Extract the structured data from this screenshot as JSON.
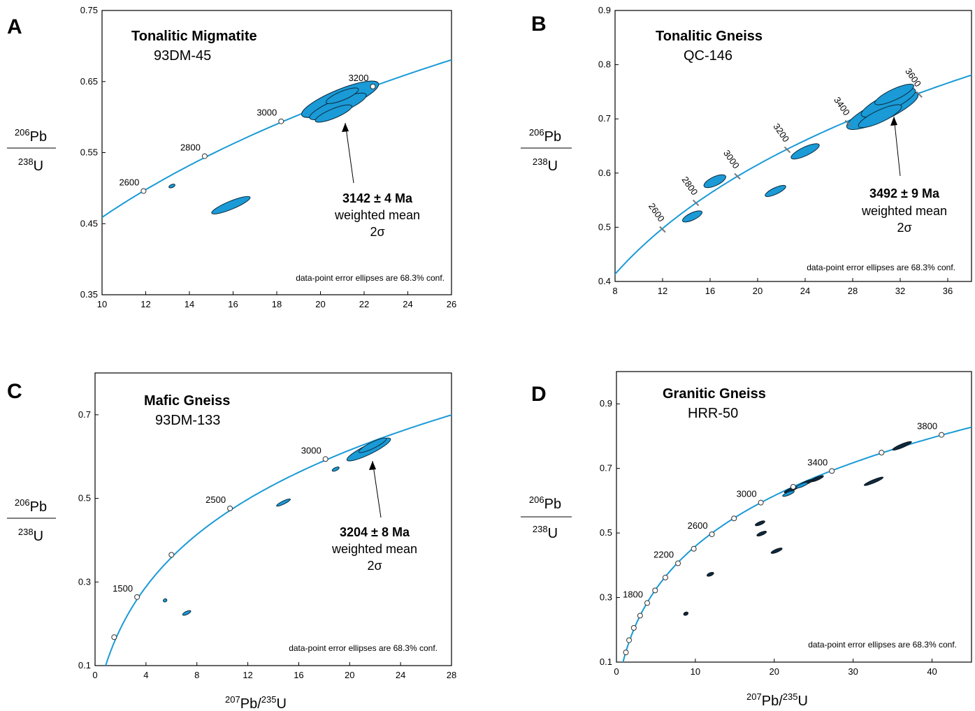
{
  "figure_note": "data-point error ellipses are 68.3% conf.",
  "y_axis_label": {
    "top_sup": "206",
    "top_el": "Pb",
    "bot_sup": "238",
    "bot_el": "U"
  },
  "x_axis_label": {
    "sup1": "207",
    "el1": "Pb/",
    "sup2": "235",
    "el2": "U"
  },
  "chart_data": [
    {
      "panel": "A",
      "type": "scatter",
      "title": "Tonalitic Migmatite",
      "sample": "93DM-45",
      "xlim": [
        10,
        26
      ],
      "ylim": [
        0.35,
        0.75
      ],
      "xticks": [
        10,
        12,
        14,
        16,
        18,
        20,
        22,
        24,
        26
      ],
      "yticks": [
        0.35,
        0.45,
        0.55,
        0.65,
        0.75
      ],
      "ytick_labels": [
        "0.35",
        "0.45",
        "0.55",
        "0.65",
        "0.75"
      ],
      "age_markers": [
        {
          "age": "2600",
          "x": 11.9,
          "y": 0.496
        },
        {
          "age": "2800",
          "x": 14.7,
          "y": 0.545
        },
        {
          "age": "3000",
          "x": 18.2,
          "y": 0.594
        },
        {
          "age": "3200",
          "x": 22.4,
          "y": 0.643
        }
      ],
      "ellipses": [
        {
          "x": 20.9,
          "y": 0.625,
          "sx": 1.9,
          "sy": 0.062
        },
        {
          "x": 20.8,
          "y": 0.615,
          "sx": 1.4,
          "sy": 0.044
        },
        {
          "x": 21.0,
          "y": 0.63,
          "sx": 0.8,
          "sy": 0.028
        },
        {
          "x": 20.6,
          "y": 0.605,
          "sx": 0.9,
          "sy": 0.03
        },
        {
          "x": 15.9,
          "y": 0.476,
          "sx": 0.95,
          "sy": 0.026
        },
        {
          "x": 13.2,
          "y": 0.503,
          "sx": 0.15,
          "sy": 0.004
        }
      ],
      "result": {
        "age": "3142 ± 4 Ma",
        "method": "weighted mean",
        "sigma": "2σ"
      }
    },
    {
      "panel": "B",
      "type": "scatter",
      "title": "Tonalitic Gneiss",
      "sample": "QC-146",
      "xlim": [
        8,
        38
      ],
      "ylim": [
        0.4,
        0.9
      ],
      "xticks": [
        8,
        12,
        16,
        20,
        24,
        28,
        32,
        36
      ],
      "yticks": [
        0.4,
        0.5,
        0.6,
        0.7,
        0.8,
        0.9
      ],
      "ytick_labels": [
        "0.4",
        "0.5",
        "0.6",
        "0.7",
        "0.8",
        "0.9"
      ],
      "age_markers": [
        {
          "age": "2600",
          "x": 12.0,
          "y": 0.496
        },
        {
          "age": "2800",
          "x": 14.8,
          "y": 0.545
        },
        {
          "age": "3000",
          "x": 18.3,
          "y": 0.594
        },
        {
          "age": "3200",
          "x": 22.5,
          "y": 0.643
        },
        {
          "age": "3400",
          "x": 27.6,
          "y": 0.692
        },
        {
          "age": "3600",
          "x": 33.6,
          "y": 0.745
        }
      ],
      "ellipses": [
        {
          "x": 30.5,
          "y": 0.715,
          "sx": 3.3,
          "sy": 0.08
        },
        {
          "x": 31.0,
          "y": 0.73,
          "sx": 2.5,
          "sy": 0.065
        },
        {
          "x": 30.3,
          "y": 0.705,
          "sx": 2.0,
          "sy": 0.05
        },
        {
          "x": 31.5,
          "y": 0.745,
          "sx": 1.8,
          "sy": 0.045
        },
        {
          "x": 24.0,
          "y": 0.64,
          "sx": 1.3,
          "sy": 0.036
        },
        {
          "x": 21.5,
          "y": 0.567,
          "sx": 0.95,
          "sy": 0.027
        },
        {
          "x": 16.4,
          "y": 0.585,
          "sx": 1.0,
          "sy": 0.037
        },
        {
          "x": 14.5,
          "y": 0.52,
          "sx": 0.9,
          "sy": 0.03
        }
      ],
      "result": {
        "age": "3492 ± 9 Ma",
        "method": "weighted mean",
        "sigma": "2σ"
      }
    },
    {
      "panel": "C",
      "type": "scatter",
      "title": "Mafic Gneiss",
      "sample": "93DM-133",
      "xlim": [
        0,
        28
      ],
      "ylim": [
        0.1,
        0.8
      ],
      "xticks": [
        0,
        4,
        8,
        12,
        16,
        20,
        24,
        28
      ],
      "yticks": [
        0.1,
        0.3,
        0.5,
        0.7
      ],
      "ytick_labels": [
        "0.1",
        "0.3",
        "0.5",
        "0.7"
      ],
      "age_markers": [
        {
          "age": "",
          "x": 1.5,
          "y": 0.168
        },
        {
          "age": "1500",
          "x": 3.3,
          "y": 0.264
        },
        {
          "age": "",
          "x": 6.0,
          "y": 0.365
        },
        {
          "age": "2500",
          "x": 10.6,
          "y": 0.476
        },
        {
          "age": "3000",
          "x": 18.1,
          "y": 0.594
        }
      ],
      "ellipses": [
        {
          "x": 21.5,
          "y": 0.617,
          "sx": 1.9,
          "sy": 0.052
        },
        {
          "x": 21.8,
          "y": 0.627,
          "sx": 1.2,
          "sy": 0.034
        },
        {
          "x": 18.9,
          "y": 0.57,
          "sx": 0.3,
          "sy": 0.009
        },
        {
          "x": 14.8,
          "y": 0.49,
          "sx": 0.6,
          "sy": 0.017
        },
        {
          "x": 7.2,
          "y": 0.226,
          "sx": 0.35,
          "sy": 0.009
        },
        {
          "x": 5.5,
          "y": 0.256,
          "sx": 0.15,
          "sy": 0.007
        }
      ],
      "result": {
        "age": "3204 ± 8 Ma",
        "method": "weighted mean",
        "sigma": "2σ"
      }
    },
    {
      "panel": "D",
      "type": "scatter",
      "title": "Granitic Gneiss",
      "sample": "HRR-50",
      "xlim": [
        0,
        45
      ],
      "ylim": [
        0.1,
        1.0
      ],
      "xticks": [
        0,
        10,
        20,
        30,
        40
      ],
      "yticks": [
        0.1,
        0.3,
        0.5,
        0.7,
        0.9
      ],
      "ytick_labels": [
        "0.1",
        "0.3",
        "0.5",
        "0.7",
        "0.9"
      ],
      "age_markers": [
        {
          "age": "",
          "x": 1.2,
          "y": 0.13
        },
        {
          "age": "",
          "x": 1.6,
          "y": 0.168
        },
        {
          "age": "",
          "x": 2.2,
          "y": 0.206
        },
        {
          "age": "",
          "x": 3.0,
          "y": 0.244
        },
        {
          "age": "1800",
          "x": 3.9,
          "y": 0.283
        },
        {
          "age": "",
          "x": 4.9,
          "y": 0.322
        },
        {
          "age": "",
          "x": 6.2,
          "y": 0.362
        },
        {
          "age": "2200",
          "x": 7.8,
          "y": 0.406
        },
        {
          "age": "",
          "x": 9.8,
          "y": 0.451
        },
        {
          "age": "2600",
          "x": 12.1,
          "y": 0.496
        },
        {
          "age": "",
          "x": 14.9,
          "y": 0.545
        },
        {
          "age": "3000",
          "x": 18.3,
          "y": 0.594
        },
        {
          "age": "",
          "x": 22.4,
          "y": 0.643
        },
        {
          "age": "3400",
          "x": 27.3,
          "y": 0.692
        },
        {
          "age": "",
          "x": 33.6,
          "y": 0.749
        },
        {
          "age": "3800",
          "x": 41.2,
          "y": 0.804
        }
      ],
      "ellipses": [
        {
          "x": 25.4,
          "y": 0.668,
          "sx": 0.9,
          "sy": 0.022,
          "style": "dark"
        },
        {
          "x": 24.0,
          "y": 0.655,
          "sx": 1.0,
          "sy": 0.022,
          "style": "dark"
        },
        {
          "x": 22.2,
          "y": 0.635,
          "sx": 1.0,
          "sy": 0.018,
          "style": "dark"
        },
        {
          "x": 21.8,
          "y": 0.622,
          "sx": 0.8,
          "sy": 0.014
        },
        {
          "x": 23.5,
          "y": 0.648,
          "sx": 0.8,
          "sy": 0.015
        },
        {
          "x": 36.2,
          "y": 0.77,
          "sx": 1.3,
          "sy": 0.025,
          "style": "dark"
        },
        {
          "x": 32.6,
          "y": 0.66,
          "sx": 1.3,
          "sy": 0.022,
          "style": "dark"
        },
        {
          "x": 18.2,
          "y": 0.53,
          "sx": 0.65,
          "sy": 0.018,
          "style": "dark"
        },
        {
          "x": 18.4,
          "y": 0.498,
          "sx": 0.65,
          "sy": 0.018,
          "style": "dark"
        },
        {
          "x": 20.3,
          "y": 0.445,
          "sx": 0.75,
          "sy": 0.018,
          "style": "dark"
        },
        {
          "x": 11.9,
          "y": 0.372,
          "sx": 0.45,
          "sy": 0.012,
          "style": "dark"
        },
        {
          "x": 8.8,
          "y": 0.25,
          "sx": 0.3,
          "sy": 0.008,
          "style": "dark"
        }
      ]
    }
  ]
}
